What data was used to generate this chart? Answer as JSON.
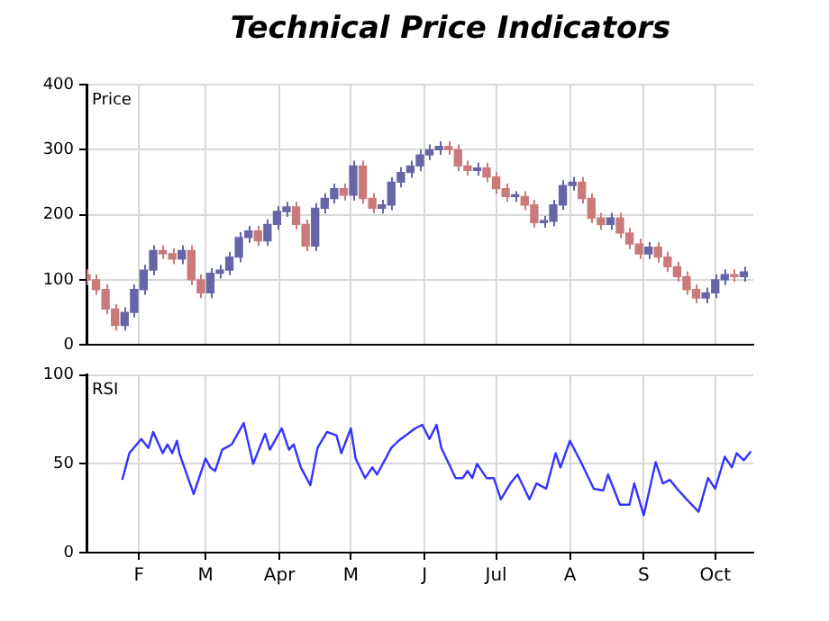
{
  "chart_data": [
    {
      "type": "candlestick",
      "title": "Technical Price Indicators",
      "annotations": [
        "Price"
      ],
      "x": [
        "--01-10",
        "--01-14",
        "--01-18",
        "--01-22",
        "--01-26",
        "--01-30",
        "--02-03",
        "--02-07",
        "--02-11",
        "--02-15",
        "--02-19",
        "--02-23",
        "--02-27",
        "--03-03",
        "--03-07",
        "--03-11",
        "--03-15",
        "--03-19",
        "--03-23",
        "--03-27",
        "--03-31",
        "--04-04",
        "--04-08",
        "--04-12",
        "--04-16",
        "--04-20",
        "--04-24",
        "--04-28",
        "--05-02",
        "--05-06",
        "--05-10",
        "--05-14",
        "--05-18",
        "--05-22",
        "--05-26",
        "--05-30",
        "--06-03",
        "--06-07",
        "--06-11",
        "--06-15",
        "--06-19",
        "--06-23",
        "--06-27",
        "--07-01",
        "--07-05",
        "--07-09",
        "--07-13",
        "--07-17",
        "--07-21",
        "--07-25",
        "--07-29",
        "--08-02",
        "--08-06",
        "--08-10",
        "--08-14",
        "--08-18",
        "--08-22",
        "--08-26",
        "--08-30",
        "--09-03",
        "--09-07",
        "--09-11",
        "--09-15",
        "--09-19",
        "--09-23",
        "--09-27",
        "--10-01",
        "--10-05",
        "--10-09",
        "--10-13"
      ],
      "ohlc": [
        [
          108,
          116,
          92,
          100
        ],
        [
          100,
          108,
          77,
          85
        ],
        [
          85,
          93,
          47,
          55
        ],
        [
          55,
          63,
          22,
          30
        ],
        [
          30,
          58,
          22,
          50
        ],
        [
          50,
          93,
          42,
          85
        ],
        [
          85,
          123,
          77,
          115
        ],
        [
          115,
          153,
          107,
          145
        ],
        [
          145,
          153,
          132,
          140
        ],
        [
          140,
          148,
          124,
          132
        ],
        [
          132,
          153,
          124,
          145
        ],
        [
          145,
          153,
          92,
          100
        ],
        [
          100,
          108,
          72,
          80
        ],
        [
          80,
          118,
          72,
          110
        ],
        [
          110,
          123,
          102,
          115
        ],
        [
          115,
          143,
          107,
          135
        ],
        [
          135,
          173,
          127,
          165
        ],
        [
          165,
          183,
          157,
          175
        ],
        [
          175,
          183,
          152,
          160
        ],
        [
          160,
          193,
          152,
          185
        ],
        [
          185,
          213,
          177,
          205
        ],
        [
          205,
          220,
          197,
          212
        ],
        [
          212,
          220,
          177,
          185
        ],
        [
          185,
          193,
          144,
          152
        ],
        [
          152,
          218,
          144,
          210
        ],
        [
          210,
          233,
          202,
          225
        ],
        [
          225,
          248,
          217,
          240
        ],
        [
          240,
          248,
          222,
          230
        ],
        [
          230,
          283,
          222,
          275
        ],
        [
          275,
          283,
          217,
          225
        ],
        [
          225,
          233,
          202,
          210
        ],
        [
          210,
          223,
          202,
          215
        ],
        [
          215,
          258,
          207,
          250
        ],
        [
          250,
          273,
          242,
          265
        ],
        [
          265,
          283,
          257,
          275
        ],
        [
          275,
          300,
          267,
          292
        ],
        [
          292,
          308,
          284,
          300
        ],
        [
          300,
          313,
          292,
          305
        ],
        [
          305,
          313,
          292,
          300
        ],
        [
          300,
          308,
          267,
          275
        ],
        [
          275,
          283,
          260,
          268
        ],
        [
          268,
          280,
          260,
          272
        ],
        [
          272,
          280,
          250,
          258
        ],
        [
          258,
          266,
          232,
          240
        ],
        [
          240,
          248,
          220,
          228
        ],
        [
          228,
          236,
          220,
          228
        ],
        [
          228,
          236,
          207,
          215
        ],
        [
          215,
          223,
          180,
          188
        ],
        [
          188,
          198,
          180,
          190
        ],
        [
          190,
          223,
          182,
          215
        ],
        [
          215,
          253,
          207,
          245
        ],
        [
          245,
          258,
          237,
          250
        ],
        [
          250,
          258,
          217,
          225
        ],
        [
          225,
          233,
          187,
          195
        ],
        [
          195,
          203,
          177,
          185
        ],
        [
          185,
          203,
          177,
          195
        ],
        [
          195,
          203,
          164,
          172
        ],
        [
          172,
          180,
          147,
          155
        ],
        [
          155,
          163,
          132,
          140
        ],
        [
          140,
          158,
          132,
          150
        ],
        [
          150,
          158,
          127,
          135
        ],
        [
          135,
          143,
          112,
          120
        ],
        [
          120,
          128,
          97,
          105
        ],
        [
          105,
          113,
          77,
          85
        ],
        [
          85,
          93,
          64,
          72
        ],
        [
          72,
          88,
          64,
          80
        ],
        [
          80,
          108,
          72,
          100
        ],
        [
          100,
          116,
          92,
          108
        ],
        [
          108,
          116,
          97,
          105
        ],
        [
          105,
          120,
          97,
          112
        ]
      ],
      "colors": [
        "#c97a7a",
        "#c97a7a",
        "#c97a7a",
        "#c97a7a",
        "#6666a6",
        "#6666a6",
        "#6666a6",
        "#6666a6",
        "#c97a7a",
        "#c97a7a",
        "#6666a6",
        "#c97a7a",
        "#c97a7a",
        "#6666a6",
        "#6666a6",
        "#6666a6",
        "#6666a6",
        "#6666a6",
        "#c97a7a",
        "#6666a6",
        "#6666a6",
        "#6666a6",
        "#c97a7a",
        "#c97a7a",
        "#6666a6",
        "#6666a6",
        "#6666a6",
        "#c97a7a",
        "#6666a6",
        "#c97a7a",
        "#c97a7a",
        "#6666a6",
        "#6666a6",
        "#6666a6",
        "#6666a6",
        "#6666a6",
        "#6666a6",
        "#6666a6",
        "#c97a7a",
        "#c97a7a",
        "#c97a7a",
        "#6666a6",
        "#c97a7a",
        "#c97a7a",
        "#c97a7a",
        "#6666a6",
        "#c97a7a",
        "#c97a7a",
        "#6666a6",
        "#6666a6",
        "#6666a6",
        "#6666a6",
        "#c97a7a",
        "#c97a7a",
        "#c97a7a",
        "#6666a6",
        "#c97a7a",
        "#c97a7a",
        "#c97a7a",
        "#6666a6",
        "#c97a7a",
        "#c97a7a",
        "#c97a7a",
        "#c97a7a",
        "#c97a7a",
        "#6666a6",
        "#6666a6",
        "#6666a6",
        "#c97a7a",
        "#6666a6"
      ],
      "xlim": [
        "--01-10",
        "--10-17"
      ],
      "xticks": [
        {
          "value": "--02-01",
          "label": null
        },
        {
          "value": "--03-01",
          "label": null
        },
        {
          "value": "--04-01",
          "label": null
        },
        {
          "value": "--05-01",
          "label": null
        },
        {
          "value": "--06-01",
          "label": null
        },
        {
          "value": "--07-01",
          "label": null
        },
        {
          "value": "--08-01",
          "label": null
        },
        {
          "value": "--09-01",
          "label": null
        },
        {
          "value": "--10-01",
          "label": null
        }
      ],
      "ylim": [
        0,
        400
      ],
      "yticks": [
        0,
        100,
        200,
        300,
        400
      ],
      "grid": true,
      "tick_labels": "y"
    },
    {
      "type": "line",
      "annotations": [
        "RSI"
      ],
      "series": [
        {
          "color": "#3333ff",
          "x": [
            "--01-25",
            "--01-28",
            "--02-02",
            "--02-05",
            "--02-07",
            "--02-11",
            "--02-13",
            "--02-15",
            "--02-17",
            "--02-18",
            "--02-24",
            "--03-01",
            "--03-03",
            "--03-05",
            "--03-08",
            "--03-12",
            "--03-17",
            "--03-21",
            "--03-26",
            "--03-28",
            "--04-02",
            "--04-05",
            "--04-07",
            "--04-10",
            "--04-14",
            "--04-17",
            "--04-21",
            "--04-25",
            "--04-27",
            "--05-01",
            "--05-03",
            "--05-07",
            "--05-10",
            "--05-12",
            "--05-18",
            "--05-21",
            "--05-28",
            "--05-31",
            "--06-03",
            "--06-06",
            "--06-08",
            "--06-14",
            "--06-17",
            "--06-19",
            "--06-21",
            "--06-23",
            "--06-27",
            "--06-30",
            "--07-03",
            "--07-07",
            "--07-10",
            "--07-15",
            "--07-18",
            "--07-22",
            "--07-26",
            "--07-28",
            "--08-01",
            "--08-06",
            "--08-11",
            "--08-15",
            "--08-17",
            "--08-22",
            "--08-26",
            "--08-28",
            "--09-01",
            "--09-06",
            "--09-09",
            "--09-12",
            "--09-15",
            "--09-19",
            "--09-24",
            "--09-28",
            "--10-01",
            "--10-05",
            "--10-08",
            "--10-10",
            "--10-13",
            "--10-16"
          ],
          "values": [
            41,
            56,
            64,
            59,
            68,
            56,
            61,
            56,
            63,
            56,
            33,
            53,
            48,
            46,
            58,
            61,
            73,
            50,
            67,
            58,
            70,
            58,
            61,
            48,
            38,
            59,
            68,
            66,
            56,
            70,
            53,
            42,
            48,
            44,
            59,
            63,
            70,
            72,
            64,
            72,
            59,
            42,
            42,
            46,
            42,
            50,
            42,
            42,
            30,
            39,
            44,
            30,
            39,
            36,
            56,
            48,
            63,
            50,
            36,
            35,
            44,
            27,
            27,
            39,
            21,
            51,
            39,
            41,
            36,
            30,
            23,
            42,
            36,
            54,
            48,
            56,
            52,
            57
          ]
        }
      ],
      "xlim": [
        "--01-10",
        "--10-17"
      ],
      "xticks": [
        {
          "value": "--02-01",
          "label": "F"
        },
        {
          "value": "--03-01",
          "label": "M"
        },
        {
          "value": "--04-01",
          "label": "Apr"
        },
        {
          "value": "--05-01",
          "label": "M"
        },
        {
          "value": "--06-01",
          "label": "J"
        },
        {
          "value": "--07-01",
          "label": "Jul"
        },
        {
          "value": "--08-01",
          "label": "A"
        },
        {
          "value": "--09-01",
          "label": "S"
        },
        {
          "value": "--10-01",
          "label": "Oct"
        }
      ],
      "ylim": [
        0,
        100
      ],
      "yticks": [
        0,
        50,
        100
      ],
      "grid": true
    }
  ]
}
